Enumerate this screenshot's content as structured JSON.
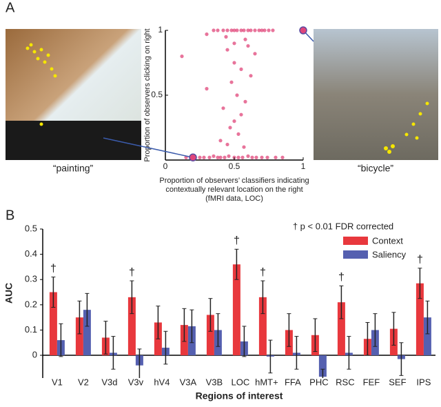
{
  "chart_data": [
    {
      "type": "scatter",
      "panel": "A",
      "x_label": [
        "Proportion of observers’ classifiers indicating",
        "contextually relevant location on the right",
        "(fMRI data, LOC)"
      ],
      "y_label": "Proportion of observers clicking on right",
      "xlim": [
        0,
        1
      ],
      "ylim": [
        0,
        1
      ],
      "xticks": [
        0,
        0.5,
        1
      ],
      "yticks": [
        0,
        0.5,
        1
      ],
      "color": "#e0457a",
      "x": [
        0.35,
        0.38,
        0.42,
        0.45,
        0.48,
        0.5,
        0.52,
        0.55,
        0.57,
        0.6,
        0.62,
        0.65,
        0.68,
        0.7,
        0.72,
        0.75,
        0.78,
        0.3,
        0.44,
        0.58,
        0.15,
        0.2,
        0.25,
        0.28,
        0.32,
        0.35,
        0.38,
        0.4,
        0.43,
        0.46,
        0.5,
        0.53,
        0.56,
        0.6,
        0.63,
        0.66,
        0.7,
        0.74,
        0.8,
        0.85,
        0.12,
        0.3,
        0.45,
        0.5,
        0.55,
        0.6,
        0.48,
        0.52,
        0.58,
        0.42,
        0.62,
        0.5,
        0.55,
        0.47,
        0.53,
        0.65,
        0.4,
        0.57,
        0.5,
        0.45
      ],
      "y": [
        1,
        1,
        1,
        1,
        1,
        1,
        1,
        1,
        1,
        1,
        1,
        1,
        1,
        1,
        1,
        1,
        1,
        0.97,
        0.95,
        0.93,
        0.02,
        0.02,
        0.02,
        0.02,
        0.02,
        0.03,
        0.02,
        0.02,
        0.02,
        0.03,
        0.02,
        0.02,
        0.02,
        0.03,
        0.02,
        0.02,
        0.02,
        0.02,
        0.02,
        0.02,
        0.8,
        0.55,
        0.85,
        0.75,
        0.7,
        0.88,
        0.6,
        0.5,
        0.45,
        0.4,
        0.65,
        0.3,
        0.35,
        0.25,
        0.2,
        0.82,
        0.15,
        0.1,
        0.9,
        0.12
      ],
      "images": [
        {
          "caption": "“painting”",
          "x": 0.2,
          "y": 0.02
        },
        {
          "caption": "“bicycle”",
          "x": 1,
          "y": 1
        }
      ]
    },
    {
      "type": "bar",
      "panel": "B",
      "y_label": "AUC",
      "x_label": "Regions of interest",
      "annotation": "† p < 0.01 FDR corrected",
      "marker": "†",
      "categories": [
        "V1",
        "V2",
        "V3d",
        "V3v",
        "hV4",
        "V3A",
        "V3B",
        "LOC",
        "hMT+",
        "FFA",
        "PHC",
        "RSC",
        "FEF",
        "SEF",
        "IPS"
      ],
      "significant": [
        true,
        false,
        false,
        true,
        false,
        false,
        false,
        true,
        true,
        false,
        false,
        true,
        false,
        false,
        true
      ],
      "series": [
        {
          "name": "Context",
          "color": "#e8383d",
          "values": [
            0.25,
            0.15,
            0.07,
            0.23,
            0.13,
            0.12,
            0.16,
            0.36,
            0.23,
            0.1,
            0.08,
            0.21,
            0.065,
            0.105,
            0.285
          ],
          "errors": [
            0.06,
            0.065,
            0.065,
            0.065,
            0.065,
            0.065,
            0.065,
            0.06,
            0.065,
            0.065,
            0.065,
            0.065,
            0.065,
            0.065,
            0.06
          ]
        },
        {
          "name": "Saliency",
          "color": "#5560b0",
          "values": [
            0.06,
            0.18,
            0.01,
            -0.04,
            0.03,
            0.115,
            0.1,
            0.055,
            -0.005,
            0.01,
            -0.085,
            0.01,
            0.1,
            -0.015,
            0.15
          ],
          "errors": [
            0.065,
            0.065,
            0.065,
            0.065,
            0.065,
            0.065,
            0.065,
            0.06,
            0.065,
            0.065,
            0.03,
            0.065,
            0.065,
            0.065,
            0.065
          ]
        }
      ],
      "ylim": [
        -0.09,
        0.5
      ],
      "yticks": [
        0,
        0.1,
        0.2,
        0.3,
        0.4,
        0.5
      ]
    }
  ]
}
